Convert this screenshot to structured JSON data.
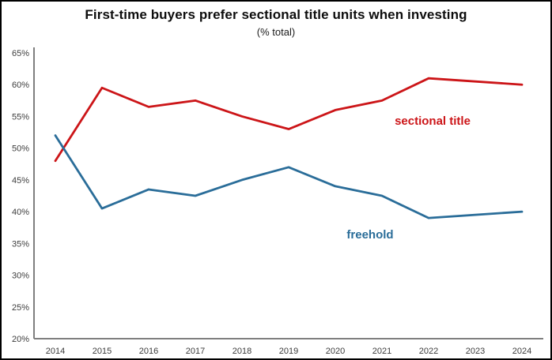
{
  "chart": {
    "title": "First-time buyers prefer sectional title units when investing",
    "subtitle": "(% total)"
  },
  "chart_data": {
    "type": "line",
    "title": "First-time buyers prefer sectional title units when investing",
    "subtitle": "(% total)",
    "categories": [
      "2014",
      "2015",
      "2016",
      "2017",
      "2018",
      "2019",
      "2020",
      "2021",
      "2022",
      "2023",
      "2024"
    ],
    "series": [
      {
        "name": "sectional title",
        "color": "#cc1518",
        "values": [
          48,
          59.5,
          56.5,
          57.5,
          55,
          53,
          56,
          57.5,
          61,
          60.5,
          60
        ]
      },
      {
        "name": "freehold",
        "color": "#2a6d99",
        "values": [
          52,
          40.5,
          43.5,
          42.5,
          45,
          47,
          44,
          42.5,
          39,
          39.5,
          40
        ]
      }
    ],
    "xlabel": "",
    "ylabel": "",
    "ylim": [
      20,
      65
    ],
    "ytick_step": 5,
    "ytick_suffix": "%",
    "grid": false,
    "legend": "inline-labels",
    "axis_color": "#7f7f7f",
    "tick_label_color": "#3c3c3c"
  }
}
